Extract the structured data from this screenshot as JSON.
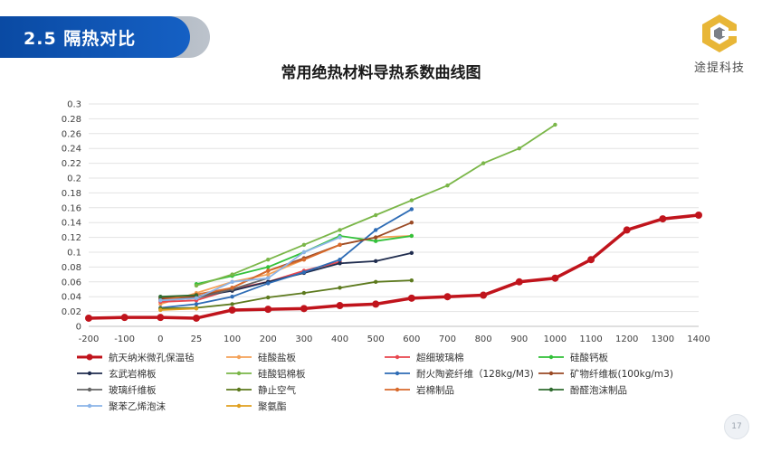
{
  "header": {
    "title": "2.5 隔热对比"
  },
  "logo": {
    "text": "途提科技",
    "colors": {
      "primary": "#e8b637",
      "secondary": "#7b7f86"
    }
  },
  "page": {
    "number": "17"
  },
  "chart_data": {
    "type": "line",
    "title": "常用绝热材料导热系数曲线图",
    "xlabel": "",
    "ylabel": "",
    "categories": [
      "-200",
      "-100",
      "0",
      "25",
      "100",
      "200",
      "300",
      "400",
      "500",
      "600",
      "700",
      "800",
      "900",
      "1000",
      "1100",
      "1200",
      "1300",
      "1400"
    ],
    "y_ticks": [
      "0",
      "0.02",
      "0.04",
      "0.06",
      "0.08",
      "0.1",
      "0.12",
      "0.14",
      "0.16",
      "0.18",
      "0.2",
      "0.22",
      "0.24",
      "0.26",
      "0.28",
      "0.3"
    ],
    "ylim": [
      0,
      0.3
    ],
    "grid": true,
    "legend_position": "bottom",
    "series": [
      {
        "name": "航天纳米微孔保温毡",
        "color": "#c0141c",
        "width": 3.5,
        "values": [
          0.011,
          0.012,
          0.012,
          0.011,
          0.022,
          0.023,
          0.024,
          0.028,
          0.03,
          0.038,
          0.04,
          0.042,
          0.06,
          0.065,
          0.09,
          0.13,
          0.145,
          0.15
        ]
      },
      {
        "name": "硅酸盐板",
        "color": "#f4a259",
        "width": 1.8,
        "values": [
          null,
          null,
          0.03,
          0.045,
          0.06,
          0.07,
          0.09,
          0.11,
          0.12,
          0.122,
          null,
          null,
          null,
          null,
          null,
          null,
          null,
          null
        ]
      },
      {
        "name": "超细玻璃棉",
        "color": "#e8474f",
        "width": 1.8,
        "values": [
          null,
          null,
          0.033,
          0.035,
          0.05,
          0.06,
          0.075,
          0.087,
          null,
          null,
          null,
          null,
          null,
          null,
          null,
          null,
          null,
          null
        ]
      },
      {
        "name": "硅酸钙板",
        "color": "#33c13a",
        "width": 1.8,
        "values": [
          null,
          null,
          null,
          0.057,
          0.068,
          0.08,
          0.1,
          0.122,
          0.115,
          0.122,
          null,
          null,
          null,
          null,
          null,
          null,
          null,
          null
        ]
      },
      {
        "name": "玄武岩棉板",
        "color": "#1f2c4e",
        "width": 1.8,
        "values": [
          null,
          null,
          0.036,
          0.04,
          0.048,
          0.06,
          0.072,
          0.085,
          0.088,
          0.099,
          null,
          null,
          null,
          null,
          null,
          null,
          null,
          null
        ]
      },
      {
        "name": "硅酸铝棉板",
        "color": "#7ab648",
        "width": 1.8,
        "values": [
          null,
          null,
          null,
          0.055,
          0.07,
          0.09,
          0.11,
          0.13,
          0.15,
          0.17,
          0.19,
          0.22,
          0.24,
          0.272,
          null,
          null,
          null,
          null
        ]
      },
      {
        "name": "耐火陶瓷纤维（128kg/M3)",
        "color": "#2e6cb5",
        "width": 1.8,
        "values": [
          null,
          null,
          0.025,
          0.03,
          0.04,
          0.058,
          0.073,
          0.09,
          0.13,
          0.158,
          null,
          null,
          null,
          null,
          null,
          null,
          null,
          null
        ]
      },
      {
        "name": "矿物纤维板(100kg/m3)",
        "color": "#9a4a25",
        "width": 1.8,
        "values": [
          null,
          null,
          0.038,
          0.04,
          0.052,
          0.075,
          0.092,
          0.11,
          0.12,
          0.14,
          null,
          null,
          null,
          null,
          null,
          null,
          null,
          null
        ]
      },
      {
        "name": "玻璃纤维板",
        "color": "#666666",
        "width": 1.8,
        "values": [
          null,
          null,
          0.035,
          0.038,
          0.05,
          0.065,
          null,
          null,
          null,
          null,
          null,
          null,
          null,
          null,
          null,
          null,
          null,
          null
        ]
      },
      {
        "name": "静止空气",
        "color": "#5d7a1e",
        "width": 1.8,
        "values": [
          null,
          null,
          0.024,
          0.025,
          0.03,
          0.039,
          0.045,
          0.052,
          0.06,
          0.062,
          null,
          null,
          null,
          null,
          null,
          null,
          null,
          null
        ]
      },
      {
        "name": "岩棉制品",
        "color": "#d86a2c",
        "width": 1.8,
        "values": [
          null,
          null,
          0.035,
          0.043,
          0.052,
          0.075,
          0.09,
          0.11,
          null,
          null,
          null,
          null,
          null,
          null,
          null,
          null,
          null,
          null
        ]
      },
      {
        "name": "酚醛泡沫制品",
        "color": "#2f6b2f",
        "width": 1.8,
        "values": [
          null,
          null,
          0.04,
          0.042,
          null,
          null,
          null,
          null,
          null,
          null,
          null,
          null,
          null,
          null,
          null,
          null,
          null,
          null
        ]
      },
      {
        "name": "聚苯乙烯泡沫",
        "color": "#8bb4e8",
        "width": 1.8,
        "values": [
          null,
          null,
          0.035,
          0.038,
          0.06,
          0.065,
          0.1,
          0.12,
          null,
          null,
          null,
          null,
          null,
          null,
          null,
          null,
          null,
          null
        ]
      },
      {
        "name": "聚氨酯",
        "color": "#e0a020",
        "width": 1.8,
        "values": [
          null,
          null,
          0.022,
          0.024,
          null,
          null,
          null,
          null,
          null,
          null,
          null,
          null,
          null,
          null,
          null,
          null,
          null,
          null
        ]
      }
    ]
  }
}
